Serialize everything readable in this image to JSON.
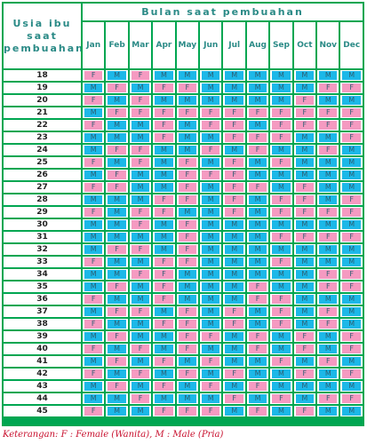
{
  "header": {
    "corner_lines": [
      "Usia ibu",
      "saat",
      "pembuahan"
    ],
    "month_group_label": "Bulan saat pembuahan",
    "months": [
      "Jan",
      "Feb",
      "Mar",
      "Apr",
      "May",
      "Jun",
      "Jul",
      "Aug",
      "Sep",
      "Oct",
      "Nov",
      "Dec"
    ]
  },
  "rows": [
    {
      "age": "18",
      "cells": [
        "F",
        "M",
        "F",
        "M",
        "M",
        "M",
        "M",
        "M",
        "M",
        "M",
        "M",
        "M"
      ]
    },
    {
      "age": "19",
      "cells": [
        "M",
        "F",
        "M",
        "F",
        "F",
        "M",
        "M",
        "M",
        "M",
        "M",
        "F",
        "F"
      ]
    },
    {
      "age": "20",
      "cells": [
        "F",
        "M",
        "F",
        "M",
        "M",
        "M",
        "M",
        "M",
        "M",
        "F",
        "M",
        "M"
      ]
    },
    {
      "age": "21",
      "cells": [
        "M",
        "F",
        "F",
        "F",
        "F",
        "F",
        "F",
        "F",
        "F",
        "F",
        "F",
        "F"
      ]
    },
    {
      "age": "22",
      "cells": [
        "F",
        "M",
        "M",
        "F",
        "M",
        "F",
        "F",
        "M",
        "F",
        "F",
        "F",
        "F"
      ]
    },
    {
      "age": "23",
      "cells": [
        "M",
        "M",
        "M",
        "F",
        "M",
        "M",
        "F",
        "F",
        "F",
        "M",
        "M",
        "F"
      ]
    },
    {
      "age": "24",
      "cells": [
        "M",
        "F",
        "F",
        "M",
        "M",
        "F",
        "M",
        "F",
        "M",
        "M",
        "F",
        "M"
      ]
    },
    {
      "age": "25",
      "cells": [
        "F",
        "M",
        "F",
        "M",
        "F",
        "M",
        "F",
        "M",
        "F",
        "M",
        "M",
        "M"
      ]
    },
    {
      "age": "26",
      "cells": [
        "M",
        "F",
        "M",
        "M",
        "F",
        "F",
        "F",
        "M",
        "M",
        "M",
        "M",
        "M"
      ]
    },
    {
      "age": "27",
      "cells": [
        "F",
        "F",
        "M",
        "M",
        "F",
        "M",
        "F",
        "F",
        "M",
        "F",
        "M",
        "M"
      ]
    },
    {
      "age": "28",
      "cells": [
        "M",
        "M",
        "M",
        "F",
        "F",
        "M",
        "F",
        "M",
        "F",
        "F",
        "M",
        "F"
      ]
    },
    {
      "age": "29",
      "cells": [
        "F",
        "M",
        "F",
        "F",
        "M",
        "M",
        "F",
        "M",
        "F",
        "F",
        "F",
        "F"
      ]
    },
    {
      "age": "30",
      "cells": [
        "M",
        "M",
        "F",
        "M",
        "F",
        "M",
        "M",
        "M",
        "M",
        "M",
        "M",
        "M"
      ]
    },
    {
      "age": "31",
      "cells": [
        "M",
        "M",
        "M",
        "M",
        "F",
        "M",
        "M",
        "M",
        "F",
        "F",
        "F",
        "F"
      ]
    },
    {
      "age": "32",
      "cells": [
        "M",
        "F",
        "F",
        "M",
        "F",
        "M",
        "M",
        "M",
        "M",
        "M",
        "M",
        "M"
      ]
    },
    {
      "age": "33",
      "cells": [
        "F",
        "M",
        "M",
        "F",
        "F",
        "M",
        "M",
        "M",
        "F",
        "M",
        "M",
        "M"
      ]
    },
    {
      "age": "34",
      "cells": [
        "M",
        "M",
        "F",
        "F",
        "M",
        "M",
        "M",
        "M",
        "M",
        "M",
        "F",
        "F"
      ]
    },
    {
      "age": "35",
      "cells": [
        "M",
        "F",
        "M",
        "F",
        "M",
        "M",
        "M",
        "F",
        "M",
        "M",
        "F",
        "F"
      ]
    },
    {
      "age": "36",
      "cells": [
        "F",
        "M",
        "M",
        "F",
        "M",
        "M",
        "M",
        "F",
        "F",
        "M",
        "M",
        "M"
      ]
    },
    {
      "age": "37",
      "cells": [
        "M",
        "F",
        "F",
        "M",
        "F",
        "M",
        "F",
        "M",
        "F",
        "M",
        "F",
        "M"
      ]
    },
    {
      "age": "38",
      "cells": [
        "F",
        "M",
        "M",
        "F",
        "F",
        "M",
        "F",
        "M",
        "F",
        "M",
        "F",
        "M"
      ]
    },
    {
      "age": "39",
      "cells": [
        "M",
        "F",
        "M",
        "M",
        "F",
        "F",
        "M",
        "F",
        "M",
        "F",
        "M",
        "F"
      ]
    },
    {
      "age": "40",
      "cells": [
        "F",
        "M",
        "F",
        "M",
        "F",
        "M",
        "M",
        "F",
        "M",
        "F",
        "M",
        "F"
      ]
    },
    {
      "age": "41",
      "cells": [
        "M",
        "F",
        "M",
        "F",
        "M",
        "F",
        "M",
        "M",
        "F",
        "M",
        "F",
        "M"
      ]
    },
    {
      "age": "42",
      "cells": [
        "F",
        "M",
        "F",
        "M",
        "F",
        "M",
        "F",
        "M",
        "M",
        "F",
        "M",
        "F"
      ]
    },
    {
      "age": "43",
      "cells": [
        "M",
        "F",
        "M",
        "F",
        "M",
        "F",
        "M",
        "F",
        "M",
        "M",
        "M",
        "M"
      ]
    },
    {
      "age": "44",
      "cells": [
        "M",
        "M",
        "F",
        "M",
        "M",
        "M",
        "F",
        "M",
        "F",
        "M",
        "F",
        "F"
      ]
    },
    {
      "age": "45",
      "cells": [
        "F",
        "M",
        "M",
        "F",
        "F",
        "F",
        "M",
        "F",
        "M",
        "F",
        "M",
        "M"
      ]
    }
  ],
  "colors": {
    "female": "#f59ac1",
    "male": "#1cb8e8",
    "grid": "#00a651",
    "header_text": "#2a8a86",
    "legend_text": "#c8102e"
  },
  "legend": "Keterangan: F : Female (Wanita),  M : Male (Pria)"
}
